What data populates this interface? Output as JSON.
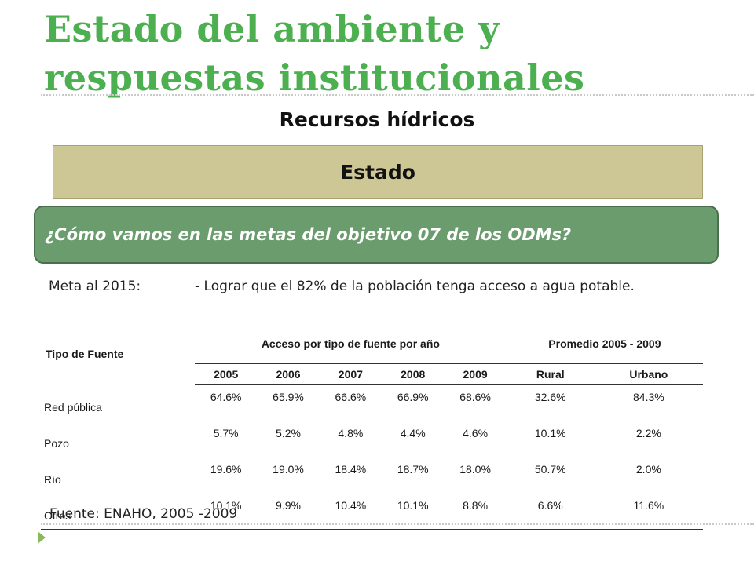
{
  "slide": {
    "title": "Estado del ambiente y respuestas institucionales",
    "subtitle": "Recursos hídricos",
    "section": "Estado",
    "question": "¿Cómo vamos en las metas del objetivo 07 de los ODMs?",
    "meta_label": "Meta al 2015:",
    "meta_text": "- Lograr que el 82% de la población tenga acceso a agua potable.",
    "source": "Fuente: ENAHO, 2005 -2009"
  },
  "table": {
    "header_source": "Tipo de Fuente",
    "header_access": "Acceso por tipo de fuente por año",
    "header_avg": "Promedio 2005 - 2009",
    "years": [
      "2005",
      "2006",
      "2007",
      "2008",
      "2009"
    ],
    "avg_cols": [
      "Rural",
      "Urbano"
    ],
    "rows": [
      {
        "source": "Red pública",
        "values": [
          "64.6%",
          "65.9%",
          "66.6%",
          "66.9%",
          "68.6%",
          "32.6%",
          "84.3%"
        ]
      },
      {
        "source": "Pozo",
        "values": [
          "5.7%",
          "5.2%",
          "4.8%",
          "4.4%",
          "4.6%",
          "10.1%",
          "2.2%"
        ]
      },
      {
        "source": "Río",
        "values": [
          "19.6%",
          "19.0%",
          "18.4%",
          "18.7%",
          "18.0%",
          "50.7%",
          "2.0%"
        ]
      },
      {
        "source": "Otros",
        "values": [
          "10.1%",
          "9.9%",
          "10.4%",
          "10.1%",
          "8.8%",
          "6.6%",
          "11.6%"
        ]
      }
    ]
  },
  "colors": {
    "title": "#4caf50",
    "section_box": "#cdc695",
    "question_box": "#6a9c6d"
  }
}
